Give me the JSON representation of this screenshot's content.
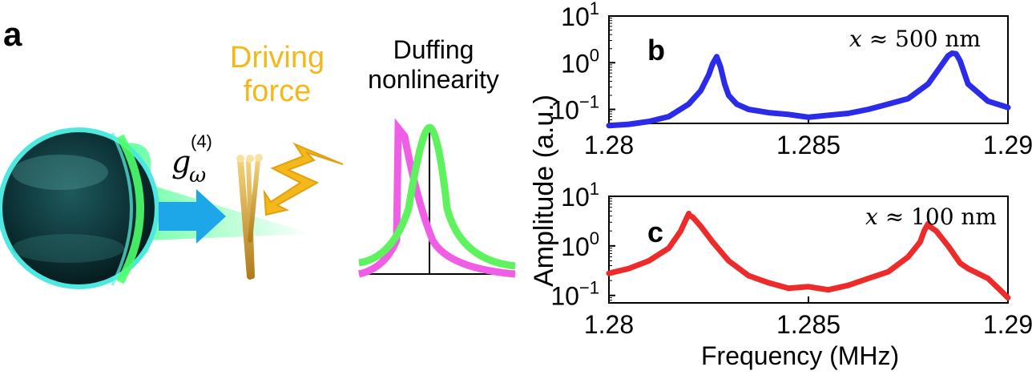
{
  "panel_a": {
    "letter": "a",
    "driving_force": "Driving force",
    "duffing_line1": "Duffing",
    "duffing_line2": "nonlinearity",
    "coupling_symbol": "g",
    "coupling_sub": "ω",
    "coupling_sup": "(4)",
    "colors": {
      "sphere": "#0d3b3f",
      "glow": "#3dff5a",
      "arrow": "#1ea7e8",
      "bolt": "#f5b81b",
      "pink": "#f05ee6",
      "green": "#5ef25e"
    }
  },
  "chart_data": [
    {
      "type": "line",
      "panel": "b",
      "annotation": "x ≈ 500 nm",
      "annotation_var": "x",
      "annotation_rest": " ≈ 500 nm",
      "xlim": [
        1.28,
        1.29
      ],
      "ylim_log10": [
        -1.3,
        1.0
      ],
      "x_ticks": [
        "1.28",
        "1.285",
        "1.29"
      ],
      "y_ticks": [
        {
          "base": "10",
          "exp": "1"
        },
        {
          "base": "10",
          "exp": "0"
        },
        {
          "base": "10",
          "exp": "−1"
        }
      ],
      "color": "#2b2bea",
      "series": [
        {
          "name": "x ≈ 500 nm",
          "x": [
            1.28,
            1.2805,
            1.281,
            1.2815,
            1.282,
            1.2823,
            1.2825,
            1.2826,
            1.2827,
            1.2828,
            1.2829,
            1.283,
            1.2832,
            1.2835,
            1.284,
            1.2845,
            1.285,
            1.2855,
            1.286,
            1.2865,
            1.287,
            1.2875,
            1.288,
            1.2883,
            1.2885,
            1.2886,
            1.2887,
            1.2888,
            1.289,
            1.2895,
            1.29
          ],
          "y": [
            0.045,
            0.048,
            0.055,
            0.07,
            0.13,
            0.25,
            0.55,
            0.95,
            1.35,
            0.8,
            0.35,
            0.2,
            0.13,
            0.1,
            0.085,
            0.078,
            0.068,
            0.075,
            0.082,
            0.1,
            0.13,
            0.17,
            0.35,
            0.8,
            1.4,
            1.6,
            1.55,
            1.1,
            0.35,
            0.15,
            0.11
          ]
        }
      ],
      "ylabel": "Amplitude (a.u.)"
    },
    {
      "type": "line",
      "panel": "c",
      "annotation": "x ≈ 100 nm",
      "annotation_var": "x",
      "annotation_rest": " ≈ 100 nm",
      "xlim": [
        1.28,
        1.29
      ],
      "ylim_log10": [
        -1.15,
        1.0
      ],
      "x_ticks": [
        "1.28",
        "1.285",
        "1.29"
      ],
      "y_ticks": [
        {
          "base": "10",
          "exp": "1"
        },
        {
          "base": "10",
          "exp": "0"
        },
        {
          "base": "10",
          "exp": "−1"
        }
      ],
      "color": "#ee2b2b",
      "series": [
        {
          "name": "x ≈ 100 nm",
          "x": [
            1.28,
            1.2805,
            1.281,
            1.2815,
            1.2818,
            1.2819,
            1.282,
            1.282,
            1.2821,
            1.2823,
            1.2826,
            1.283,
            1.2835,
            1.284,
            1.2845,
            1.285,
            1.2855,
            1.286,
            1.2865,
            1.287,
            1.2875,
            1.2878,
            1.2879,
            1.288,
            1.288,
            1.2882,
            1.2885,
            1.2888,
            1.289,
            1.2895,
            1.2898,
            1.29
          ],
          "y": [
            0.28,
            0.35,
            0.5,
            0.9,
            2.0,
            3.0,
            4.5,
            4.2,
            3.8,
            2.5,
            1.2,
            0.5,
            0.25,
            0.18,
            0.14,
            0.15,
            0.13,
            0.16,
            0.22,
            0.3,
            0.6,
            1.2,
            2.0,
            2.8,
            2.6,
            2.0,
            1.0,
            0.45,
            0.35,
            0.22,
            0.13,
            0.09
          ]
        }
      ],
      "xlabel": "Frequency (MHz)"
    }
  ]
}
